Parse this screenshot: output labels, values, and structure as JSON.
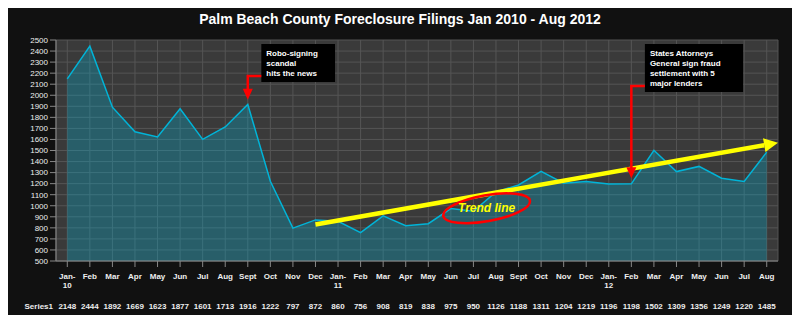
{
  "chart_data": {
    "type": "area",
    "title": "Palm Beach County Foreclosure Filings Jan 2010 - Aug 2012",
    "categories": [
      "Jan-\n10",
      "Feb",
      "Mar",
      "Apr",
      "May",
      "Jun",
      "Jul",
      "Aug",
      "Sept",
      "Oct",
      "Nov",
      "Dec",
      "Jan-\n11",
      "Feb",
      "Mar",
      "Apr",
      "May",
      "Jun",
      "Jul",
      "Aug",
      "Sept",
      "Oct",
      "Nov",
      "Dec",
      "Jan-\n12",
      "Feb",
      "Mar",
      "Apr",
      "May",
      "Jun",
      "Jul",
      "Aug"
    ],
    "series": [
      {
        "name": "Series1",
        "color": "#00b4d8",
        "values": [
          2148,
          2444,
          1892,
          1669,
          1623,
          1877,
          1601,
          1713,
          1916,
          1222,
          797,
          872,
          860,
          756,
          908,
          819,
          838,
          975,
          950,
          1126,
          1188,
          1311,
          1204,
          1219,
          1196,
          1198,
          1502,
          1309,
          1356,
          1249,
          1220,
          1485
        ]
      }
    ],
    "ylim": [
      500,
      2500
    ],
    "yticks": [
      500,
      600,
      700,
      800,
      900,
      1000,
      1100,
      1200,
      1300,
      1400,
      1500,
      1600,
      1700,
      1800,
      1900,
      2000,
      2100,
      2200,
      2300,
      2400,
      2500
    ],
    "grid": true,
    "data_labels": true,
    "annotations": [
      {
        "type": "trend_line",
        "text": "Trend line",
        "color": "yellow",
        "start": {
          "x": 11,
          "y": 830
        },
        "end": {
          "x": 31.5,
          "y": 1570
        }
      },
      {
        "text": "Robo-signing\nscandal\nhits the news",
        "color": "red",
        "x": 8.0,
        "y": 1960
      },
      {
        "text": "States Attorneys\nGeneral sign fraud\nsettlement with 5\nmajor lenders",
        "color": "red",
        "x": 25.0,
        "y": 1250
      }
    ]
  }
}
